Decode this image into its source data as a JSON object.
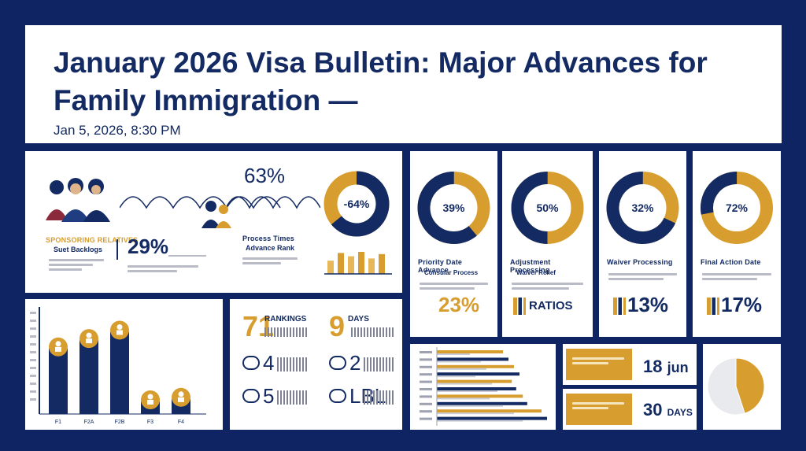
{
  "header": {
    "title": "January 2026 Visa Bulletin: Major Advances for Family Immigration —",
    "date": "Jan 5, 2026, 8:30 PM"
  },
  "colors": {
    "navy": "#132a63",
    "gold": "#d79d2e",
    "background": "#0f2463"
  },
  "panel_family": {
    "top_pct": "63%",
    "donut_pct": "-64%",
    "donut_fraction": 0.64,
    "mid_pct": "29%",
    "label_a_title": "SPONSORING RELATIVES",
    "label_a_sub": "Suet Backlogs",
    "label_b_title": "Process Times",
    "label_b_sub": "Advance Rank",
    "icon_family": "family-group-icon",
    "icon_pair": "parent-child-icon",
    "mini_bars": [
      0.6,
      0.95,
      0.8,
      1.0,
      0.7,
      0.9
    ]
  },
  "donut_cards": [
    {
      "pct": "39%",
      "fraction": 0.39,
      "title": "Priority Date Advance",
      "sub": "Consular Process",
      "stat": "23%",
      "stat_color": "#d79d2e"
    },
    {
      "pct": "50%",
      "fraction": 0.5,
      "title": "Adjustment Processing",
      "sub": "Waiver Relief",
      "stat": "RATIOS",
      "stat_color": "#132a63"
    },
    {
      "pct": "32%",
      "fraction": 0.32,
      "title": "Waiver Processing",
      "sub": "",
      "stat": "13%",
      "stat_color": "#132a63"
    },
    {
      "pct": "72%",
      "fraction": 0.72,
      "title": "Final Action Date",
      "sub": "",
      "stat": "17%",
      "stat_color": "#132a63"
    }
  ],
  "chart_data": [
    {
      "type": "bar",
      "categories": [
        "F1",
        "F2A",
        "F2B",
        "F3",
        "F4"
      ],
      "values": [
        78,
        88,
        98,
        15,
        18
      ],
      "ylim": [
        0,
        120
      ],
      "title": "",
      "xlabel": "",
      "ylabel": ""
    },
    {
      "type": "bar",
      "orientation": "horizontal",
      "categories": [
        "A",
        "B",
        "C",
        "D",
        "E",
        "F",
        "G",
        "H",
        "I",
        "J"
      ],
      "series": [
        {
          "values": [
            60,
            65,
            70,
            75,
            68,
            72,
            78,
            82,
            95,
            100
          ]
        },
        {
          "values": [
            30,
            40,
            45,
            35,
            50,
            55,
            48,
            60,
            70,
            78
          ]
        }
      ],
      "xlim": [
        0,
        100
      ]
    },
    {
      "type": "pie",
      "values": [
        45,
        55
      ],
      "title": ""
    }
  ],
  "stats_grid": {
    "items": [
      {
        "num": "71",
        "label": "RANKINGS",
        "icon": ""
      },
      {
        "num": "9",
        "label": "DAYS",
        "icon": ""
      },
      {
        "num": "4",
        "label": "",
        "icon": "car-icon"
      },
      {
        "num": "2",
        "label": "",
        "icon": "globe-icon"
      },
      {
        "num": "5",
        "label": "",
        "icon": "person-icon"
      },
      {
        "num": "LBL",
        "label": "",
        "icon": "plane-icon"
      }
    ]
  },
  "side_stats": [
    {
      "value": "18",
      "unit": "jun"
    },
    {
      "value": "30",
      "unit": "DAYS"
    }
  ]
}
